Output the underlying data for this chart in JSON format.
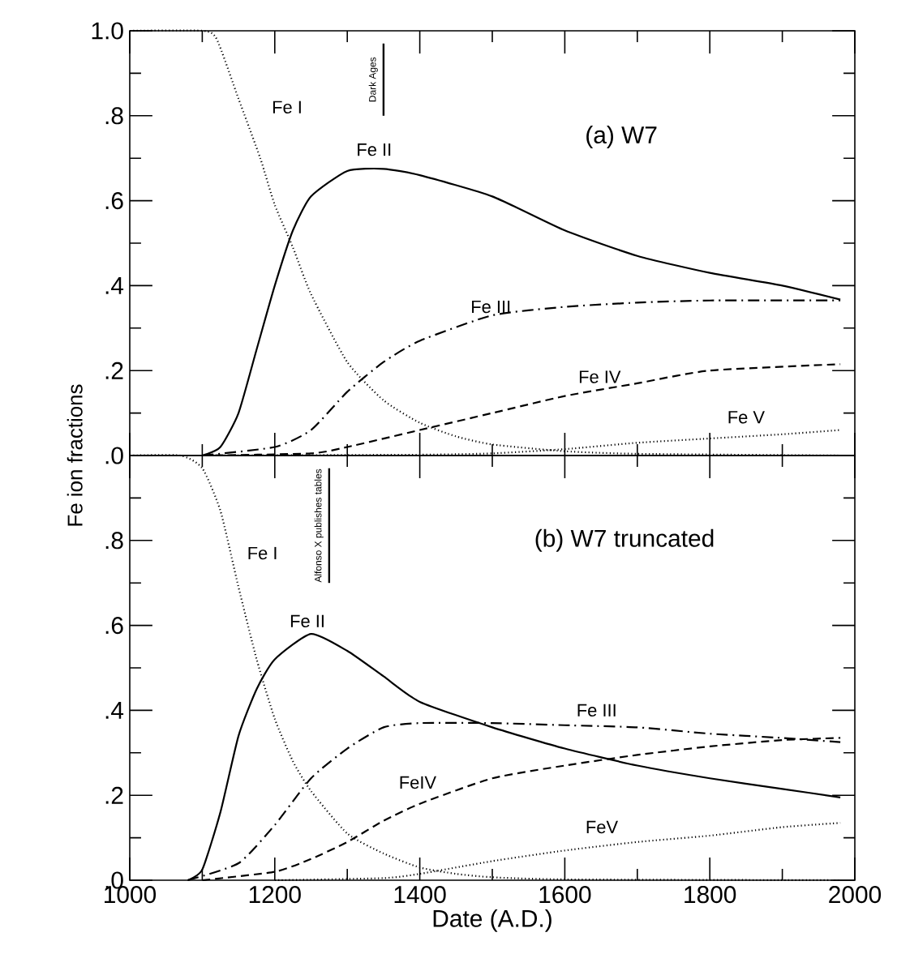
{
  "chart_data": [
    {
      "type": "line",
      "title": "(a)  W7",
      "ylabel": "Fe ion fractions",
      "xlim": [
        1000,
        2000
      ],
      "ylim": [
        0,
        1
      ],
      "xticks": [
        1000,
        1200,
        1400,
        1600,
        1800,
        2000
      ],
      "yticks": [
        {
          "value": 0,
          "label": ".0"
        },
        {
          "value": 0.2,
          "label": ".2"
        },
        {
          "value": 0.4,
          "label": ".4"
        },
        {
          "value": 0.6,
          "label": ".6"
        },
        {
          "value": 0.8,
          "label": ".8"
        },
        {
          "value": 1,
          "label": "1.0"
        }
      ],
      "tick_labels": "y",
      "ref_lines": [
        {
          "axis": "x",
          "value": 1350,
          "label": "Dark Ages"
        }
      ],
      "series": [
        {
          "name": "Fe I",
          "color": "#000000",
          "line_style": "dotted",
          "x": [
            1000,
            1100,
            1120,
            1150,
            1180,
            1200,
            1225,
            1250,
            1300,
            1350,
            1400,
            1450,
            1500,
            1600,
            1700,
            1980
          ],
          "values": [
            1.0,
            1.0,
            0.98,
            0.84,
            0.7,
            0.59,
            0.49,
            0.38,
            0.22,
            0.13,
            0.077,
            0.045,
            0.026,
            0.01,
            0.004,
            0.0
          ]
        },
        {
          "name": "Fe II",
          "color": "#000000",
          "line_style": "solid",
          "x": [
            1100,
            1125,
            1150,
            1175,
            1200,
            1225,
            1250,
            1300,
            1350,
            1400,
            1500,
            1600,
            1700,
            1800,
            1900,
            1980
          ],
          "values": [
            0.0,
            0.02,
            0.1,
            0.25,
            0.4,
            0.53,
            0.61,
            0.67,
            0.675,
            0.66,
            0.61,
            0.53,
            0.47,
            0.43,
            0.4,
            0.367
          ]
        },
        {
          "name": "Fe III",
          "color": "#000000",
          "line_style": "dashdot",
          "x": [
            1100,
            1200,
            1250,
            1300,
            1350,
            1400,
            1500,
            1600,
            1700,
            1800,
            1980
          ],
          "values": [
            0.0,
            0.02,
            0.06,
            0.15,
            0.22,
            0.27,
            0.33,
            0.35,
            0.36,
            0.365,
            0.365
          ]
        },
        {
          "name": "Fe IV",
          "color": "#000000",
          "line_style": "dashed",
          "x": [
            1100,
            1250,
            1300,
            1400,
            1500,
            1600,
            1700,
            1800,
            1980
          ],
          "values": [
            0.0,
            0.005,
            0.02,
            0.06,
            0.1,
            0.14,
            0.17,
            0.2,
            0.215
          ]
        },
        {
          "name": "Fe V",
          "color": "#000000",
          "line_style": "dotted",
          "x": [
            1100,
            1400,
            1500,
            1600,
            1700,
            1800,
            1900,
            1980
          ],
          "values": [
            0.0,
            0.002,
            0.005,
            0.015,
            0.03,
            0.04,
            0.05,
            0.06
          ]
        }
      ]
    },
    {
      "type": "line",
      "title": "(b)  W7 truncated",
      "xlabel": "Date (A.D.)",
      "xlim": [
        1000,
        2000
      ],
      "ylim": [
        0,
        1
      ],
      "xticks": [
        1000,
        1200,
        1400,
        1600,
        1800,
        2000
      ],
      "yticks": [
        {
          "value": 0,
          "label": ".0"
        },
        {
          "value": 0.2,
          "label": ".2"
        },
        {
          "value": 0.4,
          "label": ".4"
        },
        {
          "value": 0.6,
          "label": ".6"
        },
        {
          "value": 0.8,
          "label": ".8"
        },
        {
          "value": 1,
          "label": null
        }
      ],
      "ref_lines": [
        {
          "axis": "x",
          "value": 1275,
          "label": "Alfonso X publishes tables"
        }
      ],
      "series": [
        {
          "name": "Fe I",
          "color": "#000000",
          "line_style": "dotted",
          "x": [
            1000,
            1070,
            1100,
            1125,
            1150,
            1175,
            1200,
            1225,
            1250,
            1300,
            1350,
            1400,
            1450,
            1500,
            1600,
            1980
          ],
          "values": [
            1.0,
            1.0,
            0.97,
            0.87,
            0.69,
            0.52,
            0.38,
            0.28,
            0.21,
            0.11,
            0.063,
            0.03,
            0.015,
            0.007,
            0.002,
            0.0
          ]
        },
        {
          "name": "Fe II",
          "color": "#000000",
          "line_style": "solid",
          "x": [
            1080,
            1100,
            1125,
            1150,
            1175,
            1200,
            1250,
            1300,
            1350,
            1400,
            1500,
            1600,
            1700,
            1800,
            1900,
            1980
          ],
          "values": [
            0.0,
            0.025,
            0.16,
            0.34,
            0.45,
            0.52,
            0.58,
            0.54,
            0.48,
            0.42,
            0.36,
            0.31,
            0.27,
            0.24,
            0.215,
            0.195
          ]
        },
        {
          "name": "Fe III",
          "color": "#000000",
          "line_style": "dashdot",
          "x": [
            1080,
            1150,
            1200,
            1250,
            1300,
            1350,
            1400,
            1500,
            1600,
            1700,
            1800,
            1900,
            1980
          ],
          "values": [
            0.0,
            0.04,
            0.13,
            0.24,
            0.31,
            0.36,
            0.37,
            0.37,
            0.365,
            0.36,
            0.345,
            0.335,
            0.325
          ]
        },
        {
          "name": "FeIV",
          "color": "#000000",
          "line_style": "dashed",
          "x": [
            1100,
            1200,
            1250,
            1300,
            1350,
            1400,
            1500,
            1600,
            1700,
            1800,
            1900,
            1980
          ],
          "values": [
            0.0,
            0.02,
            0.05,
            0.09,
            0.14,
            0.18,
            0.24,
            0.27,
            0.295,
            0.315,
            0.33,
            0.335
          ]
        },
        {
          "name": "FeV",
          "color": "#000000",
          "line_style": "dotted",
          "x": [
            1200,
            1350,
            1400,
            1500,
            1600,
            1700,
            1800,
            1900,
            1980
          ],
          "values": [
            0.0,
            0.005,
            0.015,
            0.045,
            0.07,
            0.09,
            0.105,
            0.125,
            0.135
          ]
        }
      ]
    }
  ]
}
